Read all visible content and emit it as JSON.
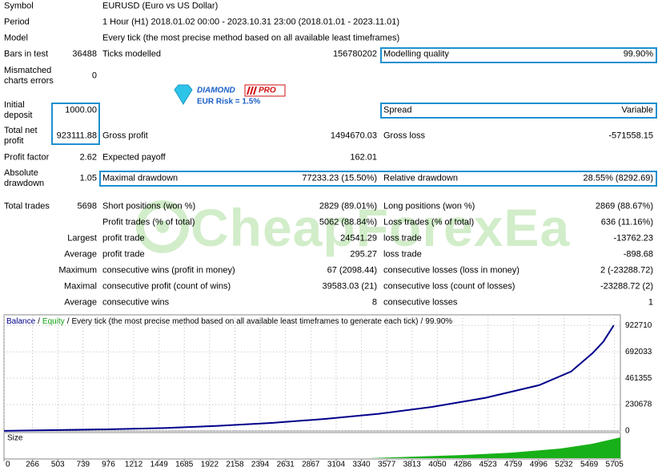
{
  "rows": [
    [
      "Symbol",
      null,
      "EURUSD (Euro vs US Dollar)",
      null,
      null,
      null
    ],
    [
      "Period",
      null,
      "1 Hour (H1) 2018.01.02 00:00 - 2023.10.31 23:00 (2018.01.01 - 2023.11.01)",
      null,
      null,
      null
    ],
    [
      "Model",
      null,
      "Every tick (the most precise method based on all available least timeframes)",
      null,
      null,
      null
    ],
    [
      "Bars in test",
      "36488",
      "Ticks modelled",
      "156780202",
      "Modelling quality",
      "99.90%"
    ],
    [
      "Mismatched charts errors",
      "0",
      null,
      null,
      null,
      null
    ],
    [
      "Initial deposit",
      "1000.00",
      null,
      null,
      "Spread",
      "Variable"
    ],
    [
      "Total net profit",
      "923111.88",
      "Gross profit",
      "1494670.03",
      "Gross loss",
      "-571558.15"
    ],
    [
      "Profit factor",
      "2.62",
      "Expected payoff",
      "162.01",
      null,
      null
    ],
    [
      "Absolute drawdown",
      "1.05",
      "Maximal drawdown",
      "77233.23 (15.50%)",
      "Relative drawdown",
      "28.55% (8292.69)"
    ],
    [
      "Total trades",
      "5698",
      "Short positions (won %)",
      "2829 (89.01%)",
      "Long positions (won %)",
      "2869 (88.67%)"
    ],
    [
      null,
      null,
      "Profit trades (% of total)",
      "5062 (88.84%)",
      "Loss trades (% of total)",
      "636 (11.16%)"
    ],
    [
      null,
      "Largest",
      "profit trade",
      "24541.29",
      "loss trade",
      "-13762.23"
    ],
    [
      null,
      "Average",
      "profit trade",
      "295.27",
      "loss trade",
      "-898.68"
    ],
    [
      null,
      "Maximum",
      "consecutive wins (profit in money)",
      "67 (2098.44)",
      "consecutive losses (loss in money)",
      "2 (-23288.72)"
    ],
    [
      null,
      "Maximal",
      "consecutive profit (count of wins)",
      "39583.03 (21)",
      "consecutive loss (count of losses)",
      "-23288.72 (2)"
    ],
    [
      null,
      "Average",
      "consecutive wins",
      "8",
      "consecutive losses",
      "1"
    ]
  ],
  "logo": {
    "name": "DIAMOND",
    "badge": "PRO",
    "risk": "EUR Risk = 1.5%"
  },
  "watermark": "CheapForexEa",
  "chart": {
    "legend": {
      "balance": "Balance",
      "balance_color": "#00008b",
      "separator": "/",
      "equity": "Equity",
      "equity_color": "#10a010",
      "description": "Every tick (the most precise method based on all available least timeframes to generate each tick)",
      "quality": "99.90%"
    },
    "size_label": "Size",
    "x": [
      0,
      1000,
      1500,
      2000,
      2500,
      3000,
      3500,
      4000,
      4500,
      5000,
      5300,
      5500,
      5600,
      5698
    ],
    "balance": [
      1000,
      15000,
      25000,
      45000,
      70000,
      105000,
      150000,
      210000,
      290000,
      400000,
      520000,
      680000,
      780000,
      923112
    ],
    "xlim": [
      0,
      5760
    ],
    "xticks": [
      0,
      266,
      503,
      739,
      976,
      1212,
      1449,
      1685,
      1922,
      2158,
      2394,
      2631,
      2867,
      3104,
      3340,
      3577,
      3813,
      4050,
      4286,
      4523,
      4759,
      4996,
      5232,
      5469,
      5705
    ],
    "ylim": [
      0,
      1015800
    ],
    "yticks": [
      0,
      230678,
      461355,
      692033,
      922710
    ],
    "grid": true
  }
}
